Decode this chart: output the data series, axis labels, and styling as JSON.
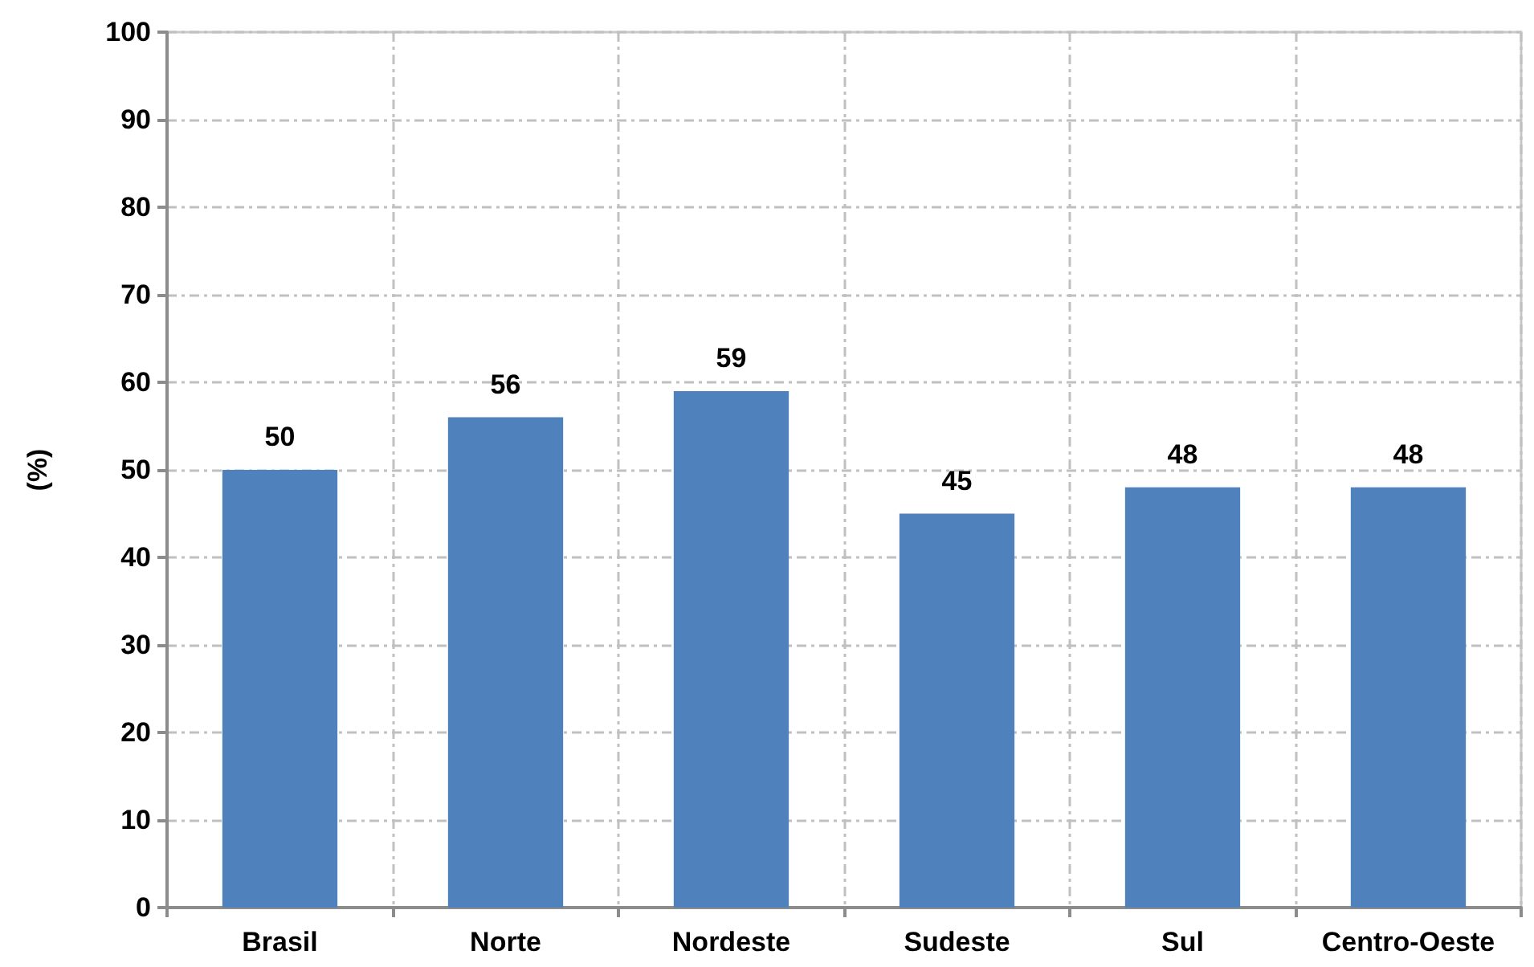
{
  "chart_data": {
    "type": "bar",
    "ylabel": "(%)",
    "categories": [
      "Brasil",
      "Norte",
      "Nordeste",
      "Sudeste",
      "Sul",
      "Centro-Oeste"
    ],
    "values": [
      50,
      56,
      59,
      45,
      48,
      48
    ],
    "color": "#4f81bd",
    "ylim": [
      0,
      100
    ],
    "yticks": [
      0,
      10,
      20,
      30,
      40,
      50,
      60,
      70,
      80,
      90,
      100
    ],
    "grid": true,
    "data_labels": true
  }
}
